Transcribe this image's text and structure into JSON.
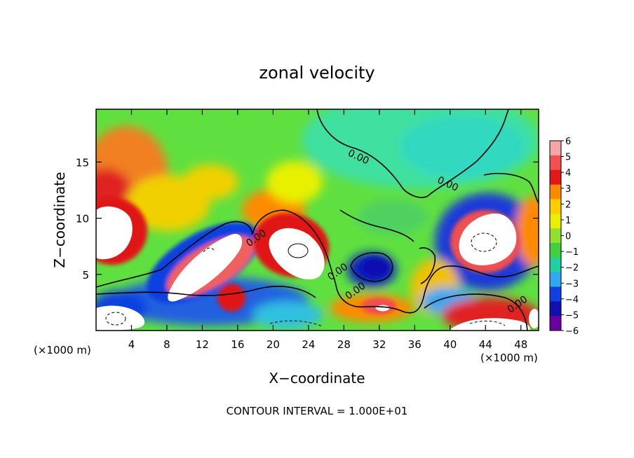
{
  "chart_data": {
    "type": "heatmap",
    "title": "zonal velocity",
    "xlabel": "X−coordinate",
    "ylabel": "Z−coordinate",
    "x_unit": "(×1000 m)",
    "y_unit": "(×1000 m)",
    "xlim": [
      0,
      50
    ],
    "ylim": [
      0,
      19.7
    ],
    "xticks": [
      4,
      8,
      12,
      16,
      20,
      24,
      28,
      32,
      36,
      40,
      44,
      48
    ],
    "yticks": [
      5,
      10,
      15
    ],
    "colorbar": {
      "levels": [
        "6",
        "5",
        "4",
        "3",
        "2",
        "1",
        "0",
        "−1",
        "−2",
        "−3",
        "−4",
        "−5",
        "−6"
      ],
      "colors": [
        "#f4a6a6",
        "#f05050",
        "#e01818",
        "#ff8a00",
        "#ffcc00",
        "#e8f000",
        "#90e030",
        "#40d040",
        "#20d0a0",
        "#30a8f0",
        "#1040e0",
        "#1010b0",
        "#6a00a0"
      ]
    },
    "contour_labels": [
      {
        "x": 29.5,
        "y": 15.2,
        "text": "0.00"
      },
      {
        "x": 39.6,
        "y": 12.8,
        "text": "0.00"
      },
      {
        "x": 18.3,
        "y": 8.0,
        "text": "0.00"
      },
      {
        "x": 27.5,
        "y": 5.0,
        "text": "0.00"
      },
      {
        "x": 29.5,
        "y": 3.3,
        "text": "0.00"
      },
      {
        "x": 47.8,
        "y": 2.1,
        "text": "0.00"
      }
    ],
    "contour_interval": "CONTOUR INTERVAL = 1.000E+01"
  }
}
